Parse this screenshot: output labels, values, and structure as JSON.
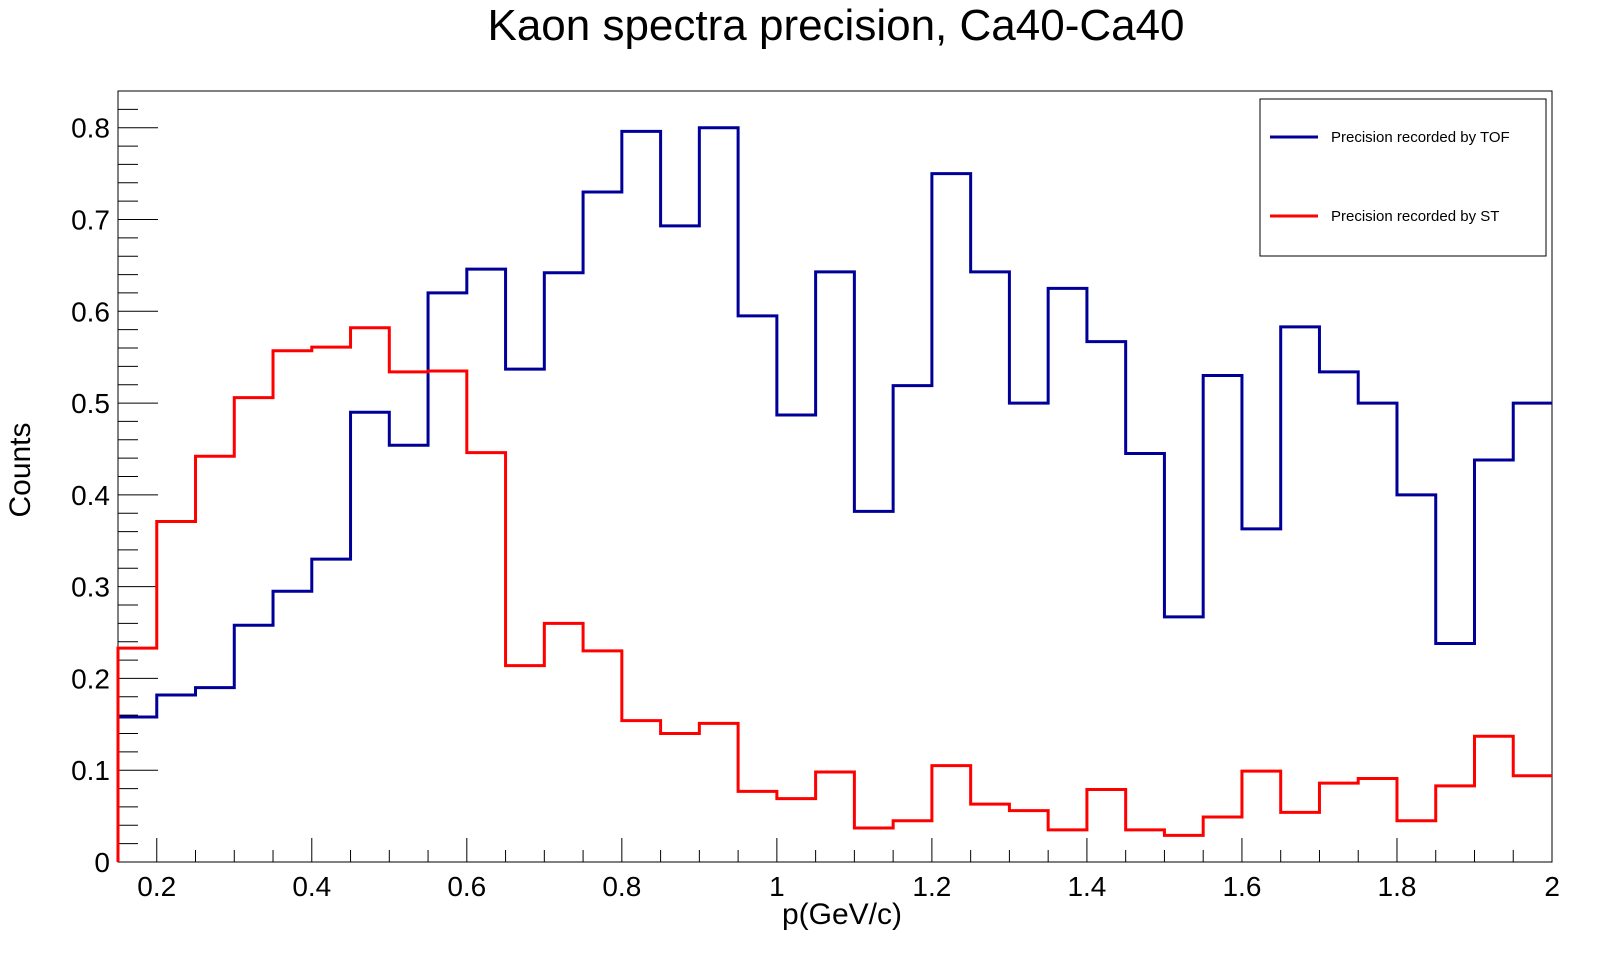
{
  "chart_data": {
    "type": "histogram",
    "title": "Kaon spectra precision, Ca40-Ca40",
    "xlabel": "p(GeV/c)",
    "ylabel": "Counts",
    "xlim": [
      0.15,
      2.0
    ],
    "ylim": [
      0,
      0.84
    ],
    "x_ticks": [
      0.2,
      0.4,
      0.6,
      0.8,
      1,
      1.2,
      1.4,
      1.6,
      1.8,
      2
    ],
    "x_tick_labels": [
      "0.2",
      "0.4",
      "0.6",
      "0.8",
      "1",
      "1.2",
      "1.4",
      "1.6",
      "1.8",
      "2"
    ],
    "y_ticks": [
      0,
      0.1,
      0.2,
      0.3,
      0.4,
      0.5,
      0.6,
      0.7,
      0.8
    ],
    "y_tick_labels": [
      "0",
      "0.1",
      "0.2",
      "0.3",
      "0.4",
      "0.5",
      "0.6",
      "0.7",
      "0.8"
    ],
    "grid": false,
    "legend_position": "top-right",
    "bin_edges": [
      0.15,
      0.2,
      0.25,
      0.3,
      0.35,
      0.4,
      0.45,
      0.5,
      0.55,
      0.6,
      0.65,
      0.7,
      0.75,
      0.8,
      0.85,
      0.9,
      0.95,
      1.0,
      1.05,
      1.1,
      1.15,
      1.2,
      1.25,
      1.3,
      1.35,
      1.4,
      1.45,
      1.5,
      1.55,
      1.6,
      1.65,
      1.7,
      1.75,
      1.8,
      1.85,
      1.9,
      1.95,
      2.0
    ],
    "series": [
      {
        "name": "Precision recorded by TOF",
        "color": "#000099",
        "values": [
          0.158,
          0.182,
          0.19,
          0.258,
          0.295,
          0.33,
          0.49,
          0.454,
          0.62,
          0.646,
          0.537,
          0.642,
          0.73,
          0.796,
          0.693,
          0.8,
          0.595,
          0.487,
          0.643,
          0.382,
          0.519,
          0.75,
          0.643,
          0.5,
          0.625,
          0.567,
          0.445,
          0.267,
          0.53,
          0.363,
          0.583,
          0.534,
          0.5,
          0.4,
          0.238,
          0.438,
          0.5
        ]
      },
      {
        "name": "Precision recorded by ST",
        "color": "#ff0000",
        "values": [
          0.233,
          0.371,
          0.442,
          0.506,
          0.557,
          0.561,
          0.582,
          0.534,
          0.535,
          0.446,
          0.214,
          0.26,
          0.23,
          0.154,
          0.14,
          0.151,
          0.077,
          0.069,
          0.098,
          0.037,
          0.045,
          0.105,
          0.063,
          0.056,
          0.035,
          0.079,
          0.035,
          0.029,
          0.049,
          0.099,
          0.054,
          0.086,
          0.091,
          0.045,
          0.083,
          0.137,
          0.094
        ]
      }
    ]
  }
}
